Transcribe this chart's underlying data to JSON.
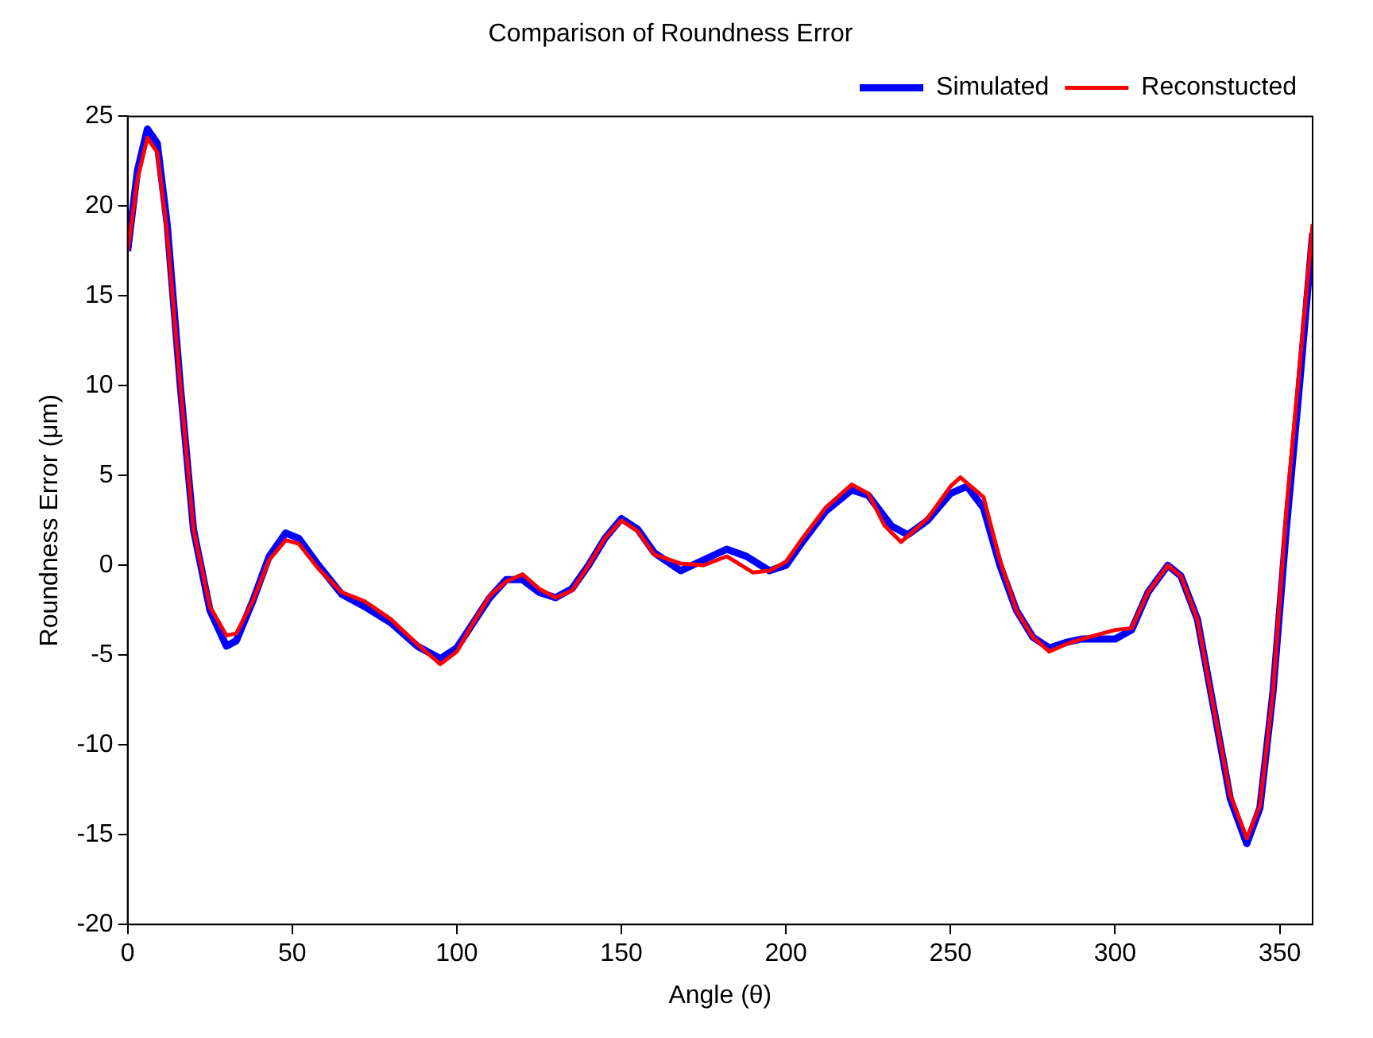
{
  "chart_data": {
    "type": "line",
    "title": "Comparison of Roundness Error",
    "xlabel": "Angle (θ)",
    "ylabel": "Roundness Error (μm)",
    "xlim": [
      0,
      360
    ],
    "xticks": [
      0,
      50,
      100,
      150,
      200,
      250,
      300,
      350
    ],
    "ylim": [
      -20,
      25
    ],
    "yticks": [
      -20,
      -15,
      -10,
      -5,
      0,
      5,
      10,
      15,
      20,
      25
    ],
    "grid": false,
    "legend": "top right",
    "marker": "none",
    "line_style": "solid",
    "series": [
      {
        "name": "Simulated",
        "color": "#0000ff",
        "x": [
          0,
          3,
          6,
          9,
          12,
          16,
          20,
          25,
          30,
          33,
          38,
          43,
          48,
          52,
          58,
          65,
          72,
          80,
          88,
          95,
          100,
          105,
          110,
          115,
          120,
          125,
          130,
          135,
          140,
          145,
          150,
          155,
          160,
          168,
          175,
          182,
          188,
          195,
          200,
          205,
          212,
          220,
          225,
          232,
          237,
          243,
          250,
          255,
          260,
          265,
          270,
          275,
          280,
          285,
          290,
          300,
          305,
          310,
          316,
          320,
          325,
          330,
          335,
          340,
          344,
          348,
          352,
          356,
          360
        ],
        "values": [
          17.5,
          22,
          24.3,
          23.5,
          19,
          10,
          2,
          -2.5,
          -4.5,
          -4.2,
          -2,
          0.5,
          1.8,
          1.5,
          0,
          -1.6,
          -2.3,
          -3.2,
          -4.5,
          -5.2,
          -4.6,
          -3.2,
          -1.8,
          -0.8,
          -0.8,
          -1.5,
          -1.8,
          -1.3,
          0,
          1.5,
          2.6,
          2,
          0.7,
          -0.3,
          0.3,
          0.9,
          0.5,
          -0.3,
          0,
          1.3,
          3,
          4.2,
          3.9,
          2.2,
          1.7,
          2.5,
          4,
          4.4,
          3.2,
          0,
          -2.5,
          -4,
          -4.6,
          -4.3,
          -4.1,
          -4.1,
          -3.6,
          -1.5,
          0,
          -0.6,
          -3,
          -8,
          -13,
          -15.5,
          -13.5,
          -7,
          2,
          10,
          18.5
        ]
      },
      {
        "name": "Reconstucted",
        "color": "#ff0000",
        "x": [
          0,
          3,
          6,
          9,
          12,
          16,
          20,
          25,
          30,
          33,
          38,
          43,
          48,
          52,
          58,
          65,
          72,
          80,
          88,
          95,
          100,
          105,
          110,
          115,
          120,
          125,
          130,
          135,
          140,
          145,
          150,
          155,
          160,
          168,
          175,
          182,
          190,
          195,
          200,
          205,
          212,
          220,
          225,
          230,
          235,
          243,
          250,
          253,
          260,
          265,
          270,
          275,
          280,
          285,
          290,
          300,
          305,
          310,
          316,
          320,
          325,
          330,
          335,
          340,
          344,
          348,
          352,
          356,
          360
        ],
        "values": [
          17.5,
          21.5,
          23.8,
          23,
          18.5,
          10,
          2,
          -2.3,
          -3.9,
          -3.8,
          -2,
          0.3,
          1.4,
          1.2,
          -0.2,
          -1.5,
          -2,
          -3,
          -4.4,
          -5.5,
          -4.8,
          -3.2,
          -1.7,
          -0.9,
          -0.5,
          -1.3,
          -1.8,
          -1.4,
          0,
          1.5,
          2.5,
          1.9,
          0.6,
          0.1,
          0,
          0.5,
          -0.4,
          -0.3,
          0.2,
          1.5,
          3.2,
          4.5,
          4,
          2.2,
          1.3,
          2.6,
          4.4,
          4.9,
          3.8,
          0.3,
          -2.5,
          -4,
          -4.8,
          -4.4,
          -4.1,
          -3.6,
          -3.5,
          -1.5,
          0,
          -0.6,
          -3,
          -8,
          -12.8,
          -15.2,
          -13.4,
          -7,
          3,
          11,
          19
        ]
      }
    ]
  }
}
